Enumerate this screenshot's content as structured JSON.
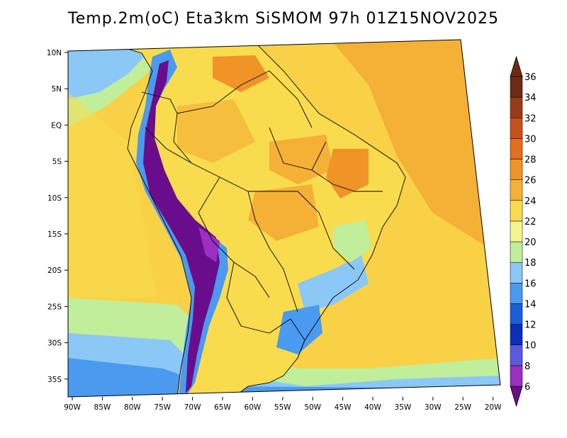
{
  "title": "Temp.2m(oC) Eta3km SiSMOM 97h 01Z15NOV2025",
  "map": {
    "variable": "2 m air temperature",
    "units": "oC",
    "lon_labels": [
      "90W",
      "85W",
      "80W",
      "75W",
      "70W",
      "65W",
      "60W",
      "55W",
      "50W",
      "45W",
      "40W",
      "35W",
      "30W",
      "25W",
      "20W"
    ],
    "lat_labels": [
      "10N",
      "5N",
      "EQ",
      "5S",
      "10S",
      "15S",
      "20S",
      "25S",
      "30S",
      "35S"
    ]
  },
  "colorbar": {
    "levels": [
      "6",
      "8",
      "10",
      "12",
      "14",
      "16",
      "18",
      "20",
      "22",
      "24",
      "26",
      "28",
      "30",
      "32",
      "34",
      "36"
    ],
    "colors": [
      "#6a0d8c",
      "#9a2fc0",
      "#5a5ae0",
      "#0a2fb8",
      "#1a5fd8",
      "#4a9af0",
      "#8cc8f5",
      "#c0ee9a",
      "#f5f590",
      "#f9dc4e",
      "#f5b036",
      "#f09428",
      "#e36e1e",
      "#c8501a",
      "#9a3a18",
      "#6e2a14"
    ],
    "colors_note": "bins from below-6 (bottom triangle) to above-36 (top triangle)"
  },
  "colors": {
    "ocean_warm": "#f5b036",
    "ocean_mild": "#f9dc4e",
    "land_base": "#f9dc4e",
    "andes_cold": "#6a0d8c",
    "borders": "#000000"
  }
}
